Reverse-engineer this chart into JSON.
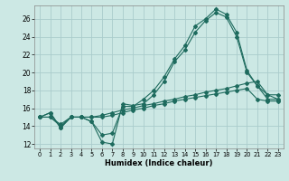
{
  "xlabel": "Humidex (Indice chaleur)",
  "ylabel": "",
  "background_color": "#cce8e4",
  "grid_color": "#aacccc",
  "line_color": "#1e6b5e",
  "xlim": [
    -0.5,
    23.5
  ],
  "ylim": [
    11.5,
    27.5
  ],
  "xticks": [
    0,
    1,
    2,
    3,
    4,
    5,
    6,
    7,
    8,
    9,
    10,
    11,
    12,
    13,
    14,
    15,
    16,
    17,
    18,
    19,
    20,
    21,
    22,
    23
  ],
  "yticks": [
    12,
    14,
    16,
    18,
    20,
    22,
    24,
    26
  ],
  "lines": [
    {
      "x": [
        0,
        1,
        2,
        3,
        4,
        5,
        6,
        7,
        8,
        9,
        10,
        11,
        12,
        13,
        14,
        15,
        16,
        17,
        18,
        19,
        20,
        21,
        22,
        23
      ],
      "y": [
        15.0,
        15.5,
        13.8,
        15.0,
        15.0,
        14.5,
        13.0,
        13.2,
        16.2,
        16.2,
        17.0,
        18.0,
        19.5,
        21.5,
        23.0,
        25.2,
        26.0,
        27.1,
        26.5,
        24.5,
        20.2,
        18.5,
        17.5,
        17.5
      ]
    },
    {
      "x": [
        0,
        1,
        2,
        3,
        4,
        5,
        6,
        7,
        8,
        9,
        10,
        11,
        12,
        13,
        14,
        15,
        16,
        17,
        18,
        19,
        20,
        21,
        22,
        23
      ],
      "y": [
        15.0,
        15.5,
        13.8,
        15.0,
        15.0,
        14.5,
        12.2,
        12.0,
        16.5,
        16.3,
        16.5,
        17.5,
        19.0,
        21.2,
        22.5,
        24.5,
        25.8,
        26.7,
        26.2,
        24.0,
        20.0,
        18.5,
        17.0,
        17.0
      ]
    },
    {
      "x": [
        0,
        1,
        2,
        3,
        4,
        5,
        6,
        7,
        8,
        9,
        10,
        11,
        12,
        13,
        14,
        15,
        16,
        17,
        18,
        19,
        20,
        21,
        22,
        23
      ],
      "y": [
        15.0,
        15.0,
        14.2,
        15.0,
        15.0,
        15.0,
        15.2,
        15.5,
        15.8,
        16.0,
        16.3,
        16.5,
        16.8,
        17.0,
        17.3,
        17.5,
        17.8,
        18.0,
        18.2,
        18.5,
        18.8,
        19.0,
        17.5,
        17.0
      ]
    },
    {
      "x": [
        0,
        1,
        2,
        3,
        4,
        5,
        6,
        7,
        8,
        9,
        10,
        11,
        12,
        13,
        14,
        15,
        16,
        17,
        18,
        19,
        20,
        21,
        22,
        23
      ],
      "y": [
        15.0,
        15.0,
        14.0,
        15.0,
        15.0,
        15.0,
        15.0,
        15.2,
        15.5,
        15.8,
        16.0,
        16.3,
        16.5,
        16.8,
        17.0,
        17.2,
        17.4,
        17.6,
        17.8,
        18.0,
        18.2,
        17.0,
        16.8,
        16.8
      ]
    }
  ]
}
